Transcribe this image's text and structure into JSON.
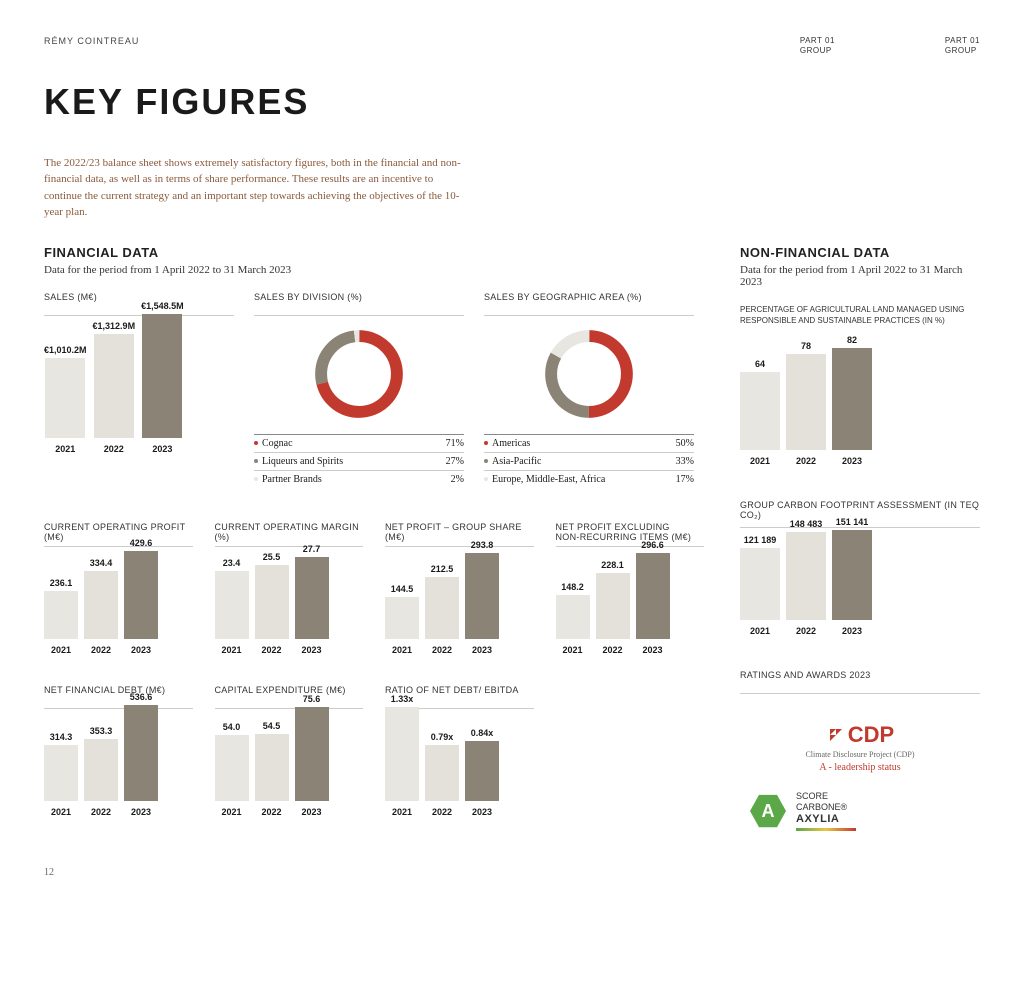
{
  "colors": {
    "bar_light": "#e8e6e1",
    "bar_mid": "#e4e1db",
    "bar_dark": "#8b8375",
    "red": "#c23a2e",
    "grey": "#8b8375",
    "cream": "#e8e6e1",
    "text_brown": "#8a5a3a"
  },
  "header": {
    "brand": "RÉMY COINTREAU",
    "part_line1": "PART 01",
    "part_line2": "GROUP"
  },
  "title": "KEY FIGURES",
  "intro": "The 2022/23 balance sheet shows extremely satisfactory figures, both in the financial and non-financial data, as well as in terms of share performance. These results are an incentive to continue the current strategy and an important step towards achieving the objectives of the 10-year plan.",
  "financial": {
    "heading": "FINANCIAL DATA",
    "subheading": "Data for the period from 1 April 2022 to 31 March 2023"
  },
  "nonfinancial": {
    "heading": "NON-FINANCIAL DATA",
    "subheading": "Data for the period from 1 April 2022 to 31 March 2023"
  },
  "sales": {
    "title": "SALES (M€)",
    "years": [
      "2021",
      "2022",
      "2023"
    ],
    "values": [
      "€1,010.2M",
      "€1,312.9M",
      "€1,548.5M"
    ],
    "heights": [
      80,
      104,
      124
    ]
  },
  "division": {
    "title": "SALES BY DIVISION (%)",
    "slices": [
      {
        "label": "Cognac",
        "pct": "71%",
        "color": "#c23a2e"
      },
      {
        "label": "Liqueurs and Spirits",
        "pct": "27%",
        "color": "#8b8375"
      },
      {
        "label": "Partner Brands",
        "pct": "2%",
        "color": "#e8e6e1"
      }
    ]
  },
  "geo": {
    "title": "SALES BY GEOGRAPHIC AREA (%)",
    "slices": [
      {
        "label": "Americas",
        "pct": "50%",
        "color": "#c23a2e"
      },
      {
        "label": "Asia-Pacific",
        "pct": "33%",
        "color": "#8b8375"
      },
      {
        "label": "Europe, Middle-East, Africa",
        "pct": "17%",
        "color": "#e8e6e1"
      }
    ]
  },
  "row2": [
    {
      "title": "CURRENT OPERATING PROFIT (M€)",
      "vals": [
        "236.1",
        "334.4",
        "429.6"
      ],
      "h": [
        48,
        68,
        88
      ]
    },
    {
      "title": "CURRENT OPERATING MARGIN (%)",
      "vals": [
        "23.4",
        "25.5",
        "27.7"
      ],
      "h": [
        68,
        74,
        82
      ]
    },
    {
      "title": "NET PROFIT – GROUP SHARE (M€)",
      "vals": [
        "144.5",
        "212.5",
        "293.8"
      ],
      "h": [
        42,
        62,
        86
      ]
    },
    {
      "title": "NET PROFIT EXCLUDING\nNON-RECURRING ITEMS (M€)",
      "vals": [
        "148.2",
        "228.1",
        "296.6"
      ],
      "h": [
        44,
        66,
        86
      ]
    }
  ],
  "row3": [
    {
      "title": "NET FINANCIAL DEBT (M€)",
      "vals": [
        "314.3",
        "353.3",
        "536.6"
      ],
      "h": [
        56,
        62,
        96
      ]
    },
    {
      "title": "CAPITAL EXPENDITURE (M€)",
      "vals": [
        "54.0",
        "54.5",
        "75.6"
      ],
      "h": [
        66,
        67,
        94
      ]
    },
    {
      "title": "RATIO OF NET DEBT/ EBITDA",
      "vals": [
        "1.33x",
        "0.79x",
        "0.84x"
      ],
      "h": [
        94,
        56,
        60
      ]
    }
  ],
  "years_small": [
    "2021",
    "2022",
    "2023"
  ],
  "agri": {
    "title": "PERCENTAGE OF AGRICULTURAL LAND MANAGED USING RESPONSIBLE AND SUSTAINABLE PRACTICES (IN %)",
    "vals": [
      "64",
      "78",
      "82"
    ],
    "h": [
      78,
      96,
      102
    ]
  },
  "carbon": {
    "title": "GROUP CARBON FOOTPRINT ASSESSMENT (IN TEQ CO₂)",
    "vals": [
      "121 189",
      "148 483",
      "151 141"
    ],
    "h": [
      72,
      88,
      90
    ]
  },
  "awards": {
    "title": "RATINGS AND AWARDS 2023",
    "cdp_logo": "CDP",
    "cdp_sub": "Climate Disclosure Project (CDP)",
    "cdp_status": "A - leadership status",
    "axylia_grade": "A",
    "axylia_line1": "SCORE",
    "axylia_line2": "CARBONE®",
    "axylia_line3": "AXYLIA"
  },
  "page_num": "12"
}
